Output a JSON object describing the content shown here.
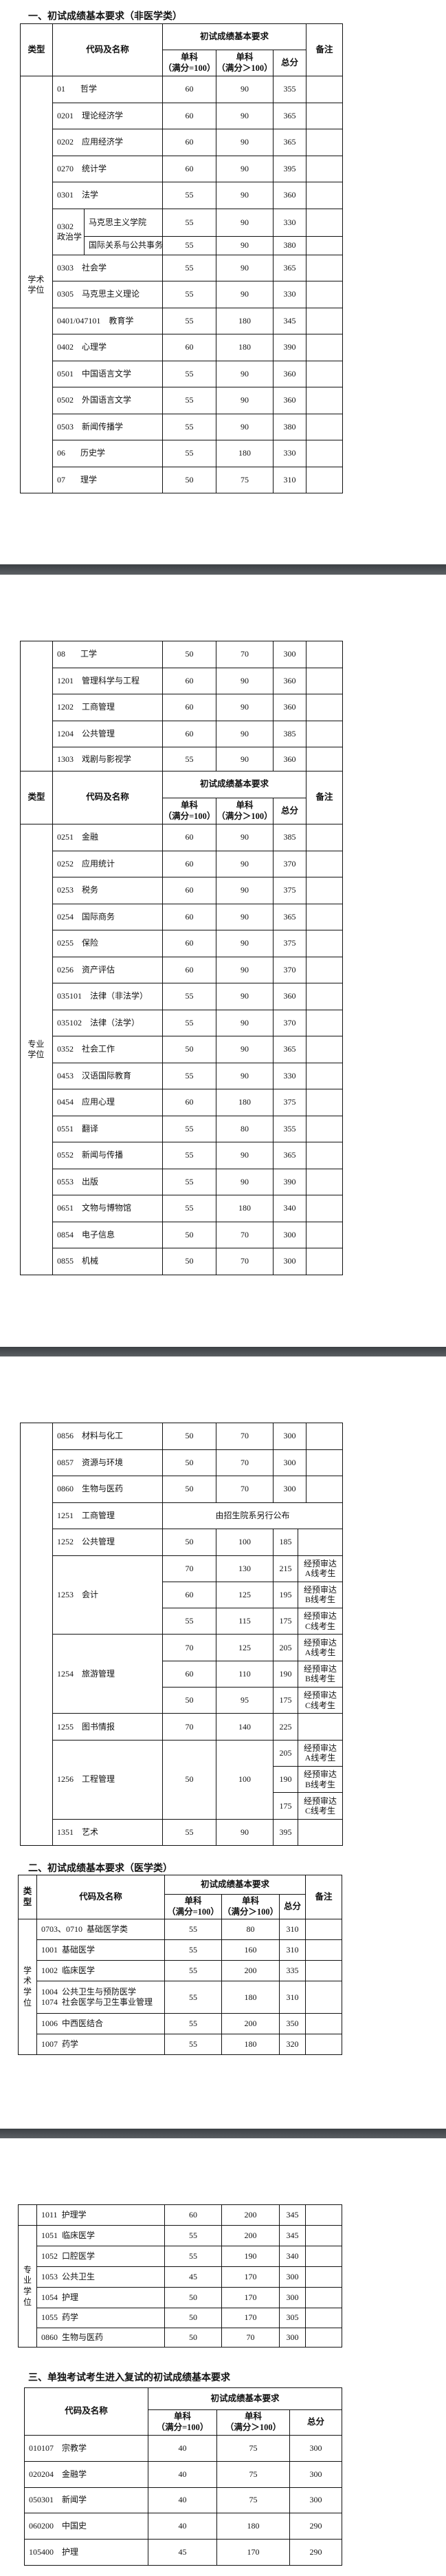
{
  "sections": {
    "s1_title": "一、初试成绩基本要求（非医学类）",
    "s2_title": "二、初试成绩基本要求（医学类）",
    "s3_title": "三、单独考试考生进入复试的初试成绩基本要求"
  },
  "header": {
    "type": "类型",
    "code_name": "代码及名称",
    "requirement": "初试成绩基本要求",
    "single": "单科",
    "full_eq_100": "（满分=100）",
    "full_gt_100": "（满分＞100）",
    "total": "总分",
    "note": "备注"
  },
  "nonmed": {
    "academic_label": "学术学位",
    "professional_label": "专业学位",
    "academic_p1": [
      {
        "code": "01",
        "name": "哲学",
        "s100": "60",
        "s_over": "90",
        "total": "355"
      },
      {
        "code": "0201",
        "name": "理论经济学",
        "s100": "60",
        "s_over": "90",
        "total": "365"
      },
      {
        "code": "0202",
        "name": "应用经济学",
        "s100": "60",
        "s_over": "90",
        "total": "365"
      },
      {
        "code": "0270",
        "name": "统计学",
        "s100": "60",
        "s_over": "90",
        "total": "395"
      },
      {
        "code": "0301",
        "name": "法学",
        "s100": "55",
        "s_over": "90",
        "total": "360"
      },
      {
        "code": "0302",
        "name": "政治学",
        "sub": [
          {
            "name": "马克思主义学院",
            "s100": "55",
            "s_over": "90",
            "total": "330"
          },
          {
            "name": "国际关系与公共事务学院",
            "s100": "55",
            "s_over": "90",
            "total": "380"
          }
        ]
      },
      {
        "code": "0303",
        "name": "社会学",
        "s100": "55",
        "s_over": "90",
        "total": "365"
      },
      {
        "code": "0305",
        "name": "马克思主义理论",
        "s100": "55",
        "s_over": "90",
        "total": "330"
      },
      {
        "code": "0401/047101",
        "name": "教育学",
        "s100": "55",
        "s_over": "180",
        "total": "345"
      },
      {
        "code": "0402",
        "name": "心理学",
        "s100": "60",
        "s_over": "180",
        "total": "390"
      },
      {
        "code": "0501",
        "name": "中国语言文学",
        "s100": "55",
        "s_over": "90",
        "total": "360"
      },
      {
        "code": "0502",
        "name": "外国语言文学",
        "s100": "55",
        "s_over": "90",
        "total": "360"
      },
      {
        "code": "0503",
        "name": "新闻传播学",
        "s100": "55",
        "s_over": "90",
        "total": "380"
      },
      {
        "code": "06",
        "name": "历史学",
        "s100": "55",
        "s_over": "180",
        "total": "330"
      },
      {
        "code": "07",
        "name": "理学",
        "s100": "50",
        "s_over": "75",
        "total": "310"
      }
    ],
    "academic_p2": [
      {
        "code": "08",
        "name": "工学",
        "s100": "50",
        "s_over": "70",
        "total": "300"
      },
      {
        "code": "1201",
        "name": "管理科学与工程",
        "s100": "60",
        "s_over": "90",
        "total": "360"
      },
      {
        "code": "1202",
        "name": "工商管理",
        "s100": "60",
        "s_over": "90",
        "total": "360"
      },
      {
        "code": "1204",
        "name": "公共管理",
        "s100": "60",
        "s_over": "90",
        "total": "385"
      },
      {
        "code": "1303",
        "name": "戏剧与影视学",
        "s100": "55",
        "s_over": "90",
        "total": "360"
      }
    ],
    "professional_p2": [
      {
        "code": "0251",
        "name": "金融",
        "s100": "60",
        "s_over": "90",
        "total": "385"
      },
      {
        "code": "0252",
        "name": "应用统计",
        "s100": "60",
        "s_over": "90",
        "total": "370"
      },
      {
        "code": "0253",
        "name": "税务",
        "s100": "60",
        "s_over": "90",
        "total": "375"
      },
      {
        "code": "0254",
        "name": "国际商务",
        "s100": "60",
        "s_over": "90",
        "total": "365"
      },
      {
        "code": "0255",
        "name": "保险",
        "s100": "60",
        "s_over": "90",
        "total": "375"
      },
      {
        "code": "0256",
        "name": "资产评估",
        "s100": "60",
        "s_over": "90",
        "total": "370"
      },
      {
        "code": "035101",
        "name": "法律（非法学）",
        "s100": "55",
        "s_over": "90",
        "total": "360"
      },
      {
        "code": "035102",
        "name": "法律（法学）",
        "s100": "55",
        "s_over": "90",
        "total": "370"
      },
      {
        "code": "0352",
        "name": "社会工作",
        "s100": "50",
        "s_over": "90",
        "total": "365"
      },
      {
        "code": "0453",
        "name": "汉语国际教育",
        "s100": "55",
        "s_over": "90",
        "total": "330"
      },
      {
        "code": "0454",
        "name": "应用心理",
        "s100": "60",
        "s_over": "180",
        "total": "375"
      },
      {
        "code": "0551",
        "name": "翻译",
        "s100": "55",
        "s_over": "80",
        "total": "355"
      },
      {
        "code": "0552",
        "name": "新闻与传播",
        "s100": "55",
        "s_over": "90",
        "total": "365"
      },
      {
        "code": "0553",
        "name": "出版",
        "s100": "55",
        "s_over": "90",
        "total": "390"
      },
      {
        "code": "0651",
        "name": "文物与博物馆",
        "s100": "55",
        "s_over": "180",
        "total": "340"
      },
      {
        "code": "0854",
        "name": "电子信息",
        "s100": "50",
        "s_over": "70",
        "total": "300"
      },
      {
        "code": "0855",
        "name": "机械",
        "s100": "50",
        "s_over": "70",
        "total": "300"
      }
    ],
    "professional_p3": [
      {
        "code": "0856",
        "name": "材料与化工",
        "s100": "50",
        "s_over": "70",
        "total": "300"
      },
      {
        "code": "0857",
        "name": "资源与环境",
        "s100": "50",
        "s_over": "70",
        "total": "300"
      },
      {
        "code": "0860",
        "name": "生物与医药",
        "s100": "50",
        "s_over": "70",
        "total": "300"
      },
      {
        "code": "1251",
        "name": "工商管理",
        "announce": "由招生院系另行公布"
      },
      {
        "code": "1252",
        "name": "公共管理",
        "s100": "50",
        "s_over": "100",
        "total": "185"
      },
      {
        "code": "1253",
        "name": "会计",
        "sub": [
          {
            "s100": "70",
            "s_over": "130",
            "total": "215",
            "note": "经预审达\nA线考生"
          },
          {
            "s100": "60",
            "s_over": "125",
            "total": "195",
            "note": "经预审达\nB线考生"
          },
          {
            "s100": "55",
            "s_over": "115",
            "total": "175",
            "note": "经预审达\nC线考生"
          }
        ]
      },
      {
        "code": "1254",
        "name": "旅游管理",
        "sub": [
          {
            "s100": "70",
            "s_over": "125",
            "total": "205",
            "note": "经预审达\nA线考生"
          },
          {
            "s100": "60",
            "s_over": "110",
            "total": "190",
            "note": "经预审达\nB线考生"
          },
          {
            "s100": "50",
            "s_over": "95",
            "total": "175",
            "note": "经预审达\nC线考生"
          }
        ]
      },
      {
        "code": "1255",
        "name": "图书情报",
        "s100": "70",
        "s_over": "140",
        "total": "225"
      },
      {
        "code": "1256",
        "name": "工程管理",
        "s100": "50",
        "s_over": "100",
        "sub": [
          {
            "total": "205",
            "note": "经预审达\nA线考生"
          },
          {
            "total": "190",
            "note": "经预审达\nB线考生"
          },
          {
            "total": "175",
            "note": "经预审达\nC线考生"
          }
        ]
      },
      {
        "code": "1351",
        "name": "艺术",
        "s100": "55",
        "s_over": "90",
        "total": "395"
      }
    ]
  },
  "med": {
    "academic_label": "学术学位",
    "professional_label": "专业学位",
    "academic_p1": [
      {
        "code": "0703、0710",
        "name": "基础医学类",
        "s100": "55",
        "s_over": "80",
        "total": "310"
      },
      {
        "code": "1001",
        "name": "基础医学",
        "s100": "55",
        "s_over": "160",
        "total": "310"
      },
      {
        "code": "1002",
        "name": "临床医学",
        "s100": "55",
        "s_over": "200",
        "total": "335"
      },
      {
        "lines": [
          {
            "code": "1004",
            "name": "公共卫生与预防医学"
          },
          {
            "code": "1074",
            "name": "社会医学与卫生事业管理"
          }
        ],
        "s100": "55",
        "s_over": "180",
        "total": "310"
      },
      {
        "code": "1006",
        "name": "中西医结合",
        "s100": "55",
        "s_over": "200",
        "total": "350"
      },
      {
        "code": "1007",
        "name": "药学",
        "s100": "55",
        "s_over": "180",
        "total": "320"
      }
    ],
    "academic_p2": [
      {
        "code": "1011",
        "name": "护理学",
        "s100": "60",
        "s_over": "200",
        "total": "345"
      }
    ],
    "professional_p2": [
      {
        "code": "1051",
        "name": "临床医学",
        "s100": "55",
        "s_over": "200",
        "total": "345"
      },
      {
        "code": "1052",
        "name": "口腔医学",
        "s100": "55",
        "s_over": "190",
        "total": "340"
      },
      {
        "code": "1053",
        "name": "公共卫生",
        "s100": "45",
        "s_over": "170",
        "total": "300"
      },
      {
        "code": "1054",
        "name": "护理",
        "s100": "50",
        "s_over": "170",
        "total": "300"
      },
      {
        "code": "1055",
        "name": "药学",
        "s100": "50",
        "s_over": "170",
        "total": "305"
      },
      {
        "code": "0860",
        "name": "生物与医药",
        "s100": "50",
        "s_over": "70",
        "total": "300"
      }
    ]
  },
  "separate": {
    "rows": [
      {
        "code": "010107",
        "name": "宗教学",
        "s100": "40",
        "s_over": "75",
        "total": "300"
      },
      {
        "code": "020204",
        "name": "金融学",
        "s100": "40",
        "s_over": "75",
        "total": "300"
      },
      {
        "code": "050301",
        "name": "新闻学",
        "s100": "40",
        "s_over": "75",
        "total": "300"
      },
      {
        "code": "060200",
        "name": "中国史",
        "s100": "40",
        "s_over": "180",
        "total": "290"
      },
      {
        "code": "105400",
        "name": "护理",
        "s100": "45",
        "s_over": "170",
        "total": "290"
      }
    ]
  }
}
